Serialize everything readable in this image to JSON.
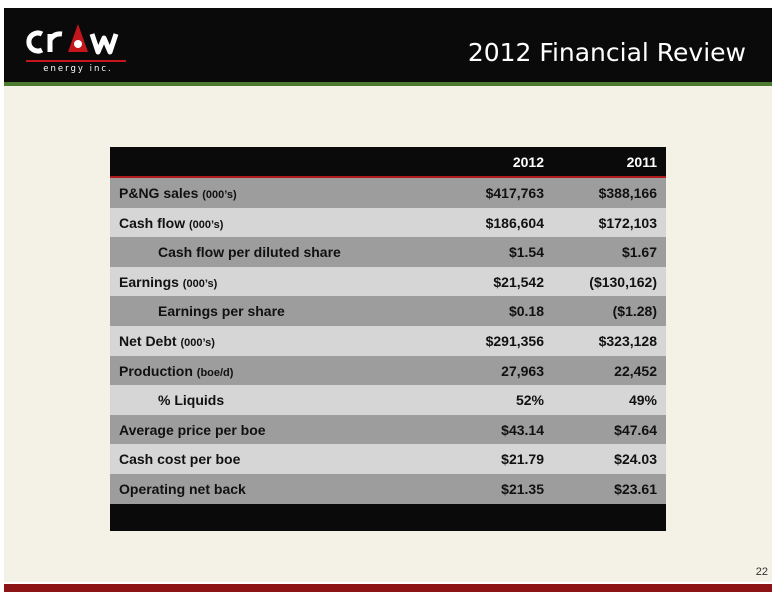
{
  "header": {
    "logo_word": "crew",
    "logo_sub": "energy inc.",
    "title": "2012 Financial Review"
  },
  "table": {
    "columns": [
      "",
      "2012",
      "2011"
    ],
    "rows": [
      {
        "label": "P&NG sales",
        "unit": "(000’s)",
        "indent": false,
        "v2012": "$417,763",
        "v2011": "$388,166"
      },
      {
        "label": "Cash flow",
        "unit": "(000’s)",
        "indent": false,
        "v2012": "$186,604",
        "v2011": "$172,103"
      },
      {
        "label": "Cash flow per diluted share",
        "unit": "",
        "indent": true,
        "v2012": "$1.54",
        "v2011": "$1.67"
      },
      {
        "label": "Earnings",
        "unit": "(000’s)",
        "indent": false,
        "v2012": "$21,542",
        "v2011": "($130,162)"
      },
      {
        "label": "Earnings per share",
        "unit": "",
        "indent": true,
        "v2012": "$0.18",
        "v2011": "($1.28)"
      },
      {
        "label": "Net Debt",
        "unit": "(000’s)",
        "indent": false,
        "v2012": "$291,356",
        "v2011": "$323,128"
      },
      {
        "label": "Production",
        "unit": "(boe/d)",
        "indent": false,
        "v2012": "27,963",
        "v2011": "22,452"
      },
      {
        "label": "% Liquids",
        "unit": "",
        "indent": true,
        "v2012": "52%",
        "v2011": "49%"
      },
      {
        "label": "Average price per boe",
        "unit": "",
        "indent": false,
        "v2012": "$43.14",
        "v2011": "$47.64"
      },
      {
        "label": "Cash cost per boe",
        "unit": "",
        "indent": false,
        "v2012": "$21.79",
        "v2011": "$24.03"
      },
      {
        "label": "Operating net back",
        "unit": "",
        "indent": false,
        "v2012": "$21.35",
        "v2011": "$23.61"
      }
    ]
  },
  "footer": {
    "page_number": "22"
  },
  "colors": {
    "header_bg": "#0a0a0a",
    "header_rule": "#4c7a2e",
    "content_bg": "#f4f2e6",
    "row_dark": "#9d9d9d",
    "row_light": "#d6d6d6",
    "accent_red": "#c4161c",
    "footer_rule": "#8c1414"
  }
}
